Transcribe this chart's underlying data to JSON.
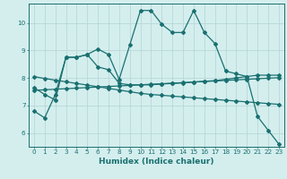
{
  "xlabel": "Humidex (Indice chaleur)",
  "xlim": [
    -0.5,
    23.5
  ],
  "ylim": [
    5.5,
    10.7
  ],
  "xticks": [
    0,
    1,
    2,
    3,
    4,
    5,
    6,
    7,
    8,
    9,
    10,
    11,
    12,
    13,
    14,
    15,
    16,
    17,
    18,
    19,
    20,
    21,
    22,
    23
  ],
  "yticks": [
    6,
    7,
    8,
    9,
    10
  ],
  "background_color": "#d4eeee",
  "grid_color": "#b8d8d8",
  "line_color": "#1a7070",
  "series": [
    {
      "x": [
        0,
        1,
        2,
        3,
        4,
        5,
        6,
        7,
        8,
        9,
        10,
        11,
        12,
        13,
        14,
        15,
        16,
        17,
        18,
        19,
        20,
        21,
        22,
        23
      ],
      "y": [
        6.8,
        6.55,
        7.4,
        8.75,
        8.75,
        8.85,
        9.05,
        8.85,
        7.95,
        9.2,
        10.45,
        10.45,
        9.95,
        9.65,
        9.65,
        10.45,
        9.65,
        9.25,
        8.25,
        8.15,
        8.05,
        6.6,
        6.1,
        5.6
      ]
    },
    {
      "x": [
        0,
        1,
        2,
        3,
        4,
        5,
        6,
        7,
        8,
        9,
        10,
        11,
        12,
        13,
        14,
        15,
        16,
        17,
        18,
        19,
        20,
        21,
        22,
        23
      ],
      "y": [
        7.65,
        7.4,
        7.2,
        8.75,
        8.75,
        8.85,
        8.4,
        8.3,
        7.8,
        7.75,
        7.75,
        7.75,
        7.78,
        7.8,
        7.82,
        7.85,
        7.88,
        7.9,
        7.95,
        8.0,
        8.05,
        8.1,
        8.1,
        8.1
      ]
    },
    {
      "x": [
        0,
        1,
        2,
        3,
        4,
        5,
        6,
        7,
        8,
        9,
        10,
        11,
        12,
        13,
        14,
        15,
        16,
        17,
        18,
        19,
        20,
        21,
        22,
        23
      ],
      "y": [
        7.55,
        7.57,
        7.59,
        7.61,
        7.63,
        7.65,
        7.67,
        7.69,
        7.71,
        7.73,
        7.75,
        7.77,
        7.79,
        7.81,
        7.83,
        7.85,
        7.87,
        7.89,
        7.91,
        7.93,
        7.95,
        7.97,
        7.99,
        8.01
      ]
    },
    {
      "x": [
        0,
        1,
        2,
        3,
        4,
        5,
        6,
        7,
        8,
        9,
        10,
        11,
        12,
        13,
        14,
        15,
        16,
        17,
        18,
        19,
        20,
        21,
        22,
        23
      ],
      "y": [
        8.05,
        7.98,
        7.92,
        7.86,
        7.8,
        7.74,
        7.68,
        7.62,
        7.56,
        7.5,
        7.44,
        7.4,
        7.37,
        7.34,
        7.31,
        7.28,
        7.25,
        7.22,
        7.19,
        7.16,
        7.13,
        7.1,
        7.07,
        7.04
      ]
    }
  ]
}
